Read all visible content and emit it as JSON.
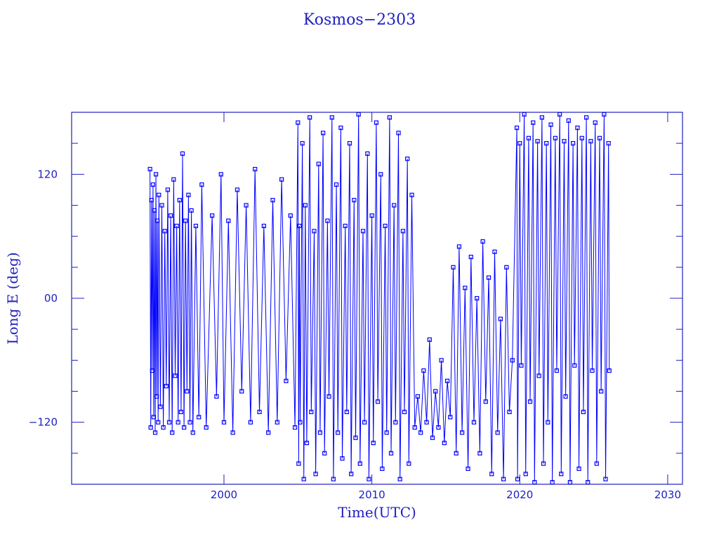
{
  "chart_data": {
    "type": "line",
    "title": "Kosmos−2303",
    "xlabel": "Time(UTC)",
    "ylabel": "Long E (deg)",
    "xlim": [
      1989.7,
      2031
    ],
    "ylim": [
      -180,
      180
    ],
    "xticks": [
      {
        "value": 2000,
        "label": "2000"
      },
      {
        "value": 2010,
        "label": "2010"
      },
      {
        "value": 2020,
        "label": "2020"
      },
      {
        "value": 2030,
        "label": "2030"
      }
    ],
    "yticks": [
      {
        "value": 120,
        "label": "120"
      },
      {
        "value": 0,
        "label": "00"
      },
      {
        "value": -120,
        "label": "−120"
      }
    ],
    "yminor_step": 30,
    "grid": false,
    "marker": "square",
    "color": "#0000ff",
    "series": [
      {
        "points": [
          [
            1995.0,
            125
          ],
          [
            1995.05,
            -125
          ],
          [
            1995.1,
            95
          ],
          [
            1995.15,
            -70
          ],
          [
            1995.2,
            110
          ],
          [
            1995.25,
            -115
          ],
          [
            1995.3,
            85
          ],
          [
            1995.35,
            -130
          ],
          [
            1995.4,
            120
          ],
          [
            1995.45,
            -95
          ],
          [
            1995.5,
            75
          ],
          [
            1995.55,
            -120
          ],
          [
            1995.6,
            100
          ],
          [
            1995.7,
            -105
          ],
          [
            1995.8,
            90
          ],
          [
            1995.9,
            -125
          ],
          [
            1996.0,
            65
          ],
          [
            1996.1,
            -85
          ],
          [
            1996.2,
            105
          ],
          [
            1996.3,
            -120
          ],
          [
            1996.4,
            80
          ],
          [
            1996.5,
            -130
          ],
          [
            1996.6,
            115
          ],
          [
            1996.7,
            -75
          ],
          [
            1996.8,
            70
          ],
          [
            1996.9,
            -120
          ],
          [
            1997.0,
            95
          ],
          [
            1997.1,
            -110
          ],
          [
            1997.2,
            140
          ],
          [
            1997.3,
            -125
          ],
          [
            1997.4,
            75
          ],
          [
            1997.5,
            -90
          ],
          [
            1997.6,
            100
          ],
          [
            1997.7,
            -120
          ],
          [
            1997.8,
            85
          ],
          [
            1997.9,
            -130
          ],
          [
            1998.1,
            70
          ],
          [
            1998.3,
            -115
          ],
          [
            1998.5,
            110
          ],
          [
            1998.8,
            -125
          ],
          [
            1999.2,
            80
          ],
          [
            1999.5,
            -95
          ],
          [
            1999.8,
            120
          ],
          [
            2000.0,
            -120
          ],
          [
            2000.3,
            75
          ],
          [
            2000.6,
            -130
          ],
          [
            2000.9,
            105
          ],
          [
            2001.2,
            -90
          ],
          [
            2001.5,
            90
          ],
          [
            2001.8,
            -120
          ],
          [
            2002.1,
            125
          ],
          [
            2002.4,
            -110
          ],
          [
            2002.7,
            70
          ],
          [
            2003.0,
            -130
          ],
          [
            2003.3,
            95
          ],
          [
            2003.6,
            -120
          ],
          [
            2003.9,
            115
          ],
          [
            2004.2,
            -80
          ],
          [
            2004.5,
            80
          ],
          [
            2004.8,
            -125
          ],
          [
            2005.0,
            170
          ],
          [
            2005.05,
            -160
          ],
          [
            2005.1,
            70
          ],
          [
            2005.15,
            -120
          ],
          [
            2005.3,
            150
          ],
          [
            2005.4,
            -175
          ],
          [
            2005.5,
            90
          ],
          [
            2005.6,
            -140
          ],
          [
            2005.8,
            175
          ],
          [
            2005.9,
            -110
          ],
          [
            2006.1,
            65
          ],
          [
            2006.2,
            -170
          ],
          [
            2006.4,
            130
          ],
          [
            2006.5,
            -130
          ],
          [
            2006.7,
            160
          ],
          [
            2006.8,
            -150
          ],
          [
            2007.0,
            75
          ],
          [
            2007.1,
            -95
          ],
          [
            2007.3,
            175
          ],
          [
            2007.4,
            -175
          ],
          [
            2007.6,
            110
          ],
          [
            2007.7,
            -130
          ],
          [
            2007.9,
            165
          ],
          [
            2008.0,
            -155
          ],
          [
            2008.2,
            70
          ],
          [
            2008.3,
            -110
          ],
          [
            2008.5,
            150
          ],
          [
            2008.6,
            -170
          ],
          [
            2008.8,
            95
          ],
          [
            2008.9,
            -135
          ],
          [
            2009.1,
            178
          ],
          [
            2009.2,
            -160
          ],
          [
            2009.4,
            65
          ],
          [
            2009.5,
            -120
          ],
          [
            2009.7,
            140
          ],
          [
            2009.8,
            -175
          ],
          [
            2010.0,
            80
          ],
          [
            2010.1,
            -140
          ],
          [
            2010.3,
            170
          ],
          [
            2010.4,
            -100
          ],
          [
            2010.6,
            120
          ],
          [
            2010.7,
            -165
          ],
          [
            2010.9,
            70
          ],
          [
            2011.0,
            -130
          ],
          [
            2011.2,
            175
          ],
          [
            2011.3,
            -150
          ],
          [
            2011.5,
            90
          ],
          [
            2011.6,
            -120
          ],
          [
            2011.8,
            160
          ],
          [
            2011.9,
            -175
          ],
          [
            2012.1,
            65
          ],
          [
            2012.2,
            -110
          ],
          [
            2012.4,
            135
          ],
          [
            2012.5,
            -160
          ],
          [
            2012.7,
            100
          ],
          [
            2012.9,
            -125
          ],
          [
            2013.1,
            -95
          ],
          [
            2013.3,
            -130
          ],
          [
            2013.5,
            -70
          ],
          [
            2013.7,
            -120
          ],
          [
            2013.9,
            -40
          ],
          [
            2014.1,
            -135
          ],
          [
            2014.3,
            -90
          ],
          [
            2014.5,
            -125
          ],
          [
            2014.7,
            -60
          ],
          [
            2014.9,
            -140
          ],
          [
            2015.1,
            -80
          ],
          [
            2015.3,
            -115
          ],
          [
            2015.5,
            30
          ],
          [
            2015.7,
            -150
          ],
          [
            2015.9,
            50
          ],
          [
            2016.1,
            -130
          ],
          [
            2016.3,
            10
          ],
          [
            2016.5,
            -165
          ],
          [
            2016.7,
            40
          ],
          [
            2016.9,
            -120
          ],
          [
            2017.1,
            0
          ],
          [
            2017.3,
            -150
          ],
          [
            2017.5,
            55
          ],
          [
            2017.7,
            -100
          ],
          [
            2017.9,
            20
          ],
          [
            2018.1,
            -170
          ],
          [
            2018.3,
            45
          ],
          [
            2018.5,
            -130
          ],
          [
            2018.7,
            -20
          ],
          [
            2018.9,
            -175
          ],
          [
            2019.1,
            30
          ],
          [
            2019.3,
            -110
          ],
          [
            2019.5,
            -60
          ],
          [
            2019.8,
            165
          ],
          [
            2019.85,
            -175
          ],
          [
            2020.0,
            150
          ],
          [
            2020.1,
            -65
          ],
          [
            2020.3,
            178
          ],
          [
            2020.4,
            -170
          ],
          [
            2020.6,
            155
          ],
          [
            2020.7,
            -100
          ],
          [
            2020.9,
            170
          ],
          [
            2021.0,
            -178
          ],
          [
            2021.2,
            152
          ],
          [
            2021.3,
            -75
          ],
          [
            2021.5,
            175
          ],
          [
            2021.6,
            -160
          ],
          [
            2021.8,
            150
          ],
          [
            2021.9,
            -120
          ],
          [
            2022.1,
            168
          ],
          [
            2022.2,
            -178
          ],
          [
            2022.4,
            155
          ],
          [
            2022.5,
            -70
          ],
          [
            2022.7,
            178
          ],
          [
            2022.8,
            -170
          ],
          [
            2023.0,
            152
          ],
          [
            2023.1,
            -95
          ],
          [
            2023.3,
            172
          ],
          [
            2023.4,
            -178
          ],
          [
            2023.6,
            150
          ],
          [
            2023.7,
            -65
          ],
          [
            2023.9,
            165
          ],
          [
            2024.0,
            -165
          ],
          [
            2024.2,
            155
          ],
          [
            2024.3,
            -110
          ],
          [
            2024.5,
            175
          ],
          [
            2024.6,
            -178
          ],
          [
            2024.8,
            152
          ],
          [
            2024.9,
            -70
          ],
          [
            2025.1,
            170
          ],
          [
            2025.2,
            -160
          ],
          [
            2025.4,
            155
          ],
          [
            2025.5,
            -90
          ],
          [
            2025.7,
            178
          ],
          [
            2025.8,
            -175
          ],
          [
            2026.0,
            150
          ],
          [
            2026.05,
            -70
          ]
        ]
      }
    ]
  }
}
